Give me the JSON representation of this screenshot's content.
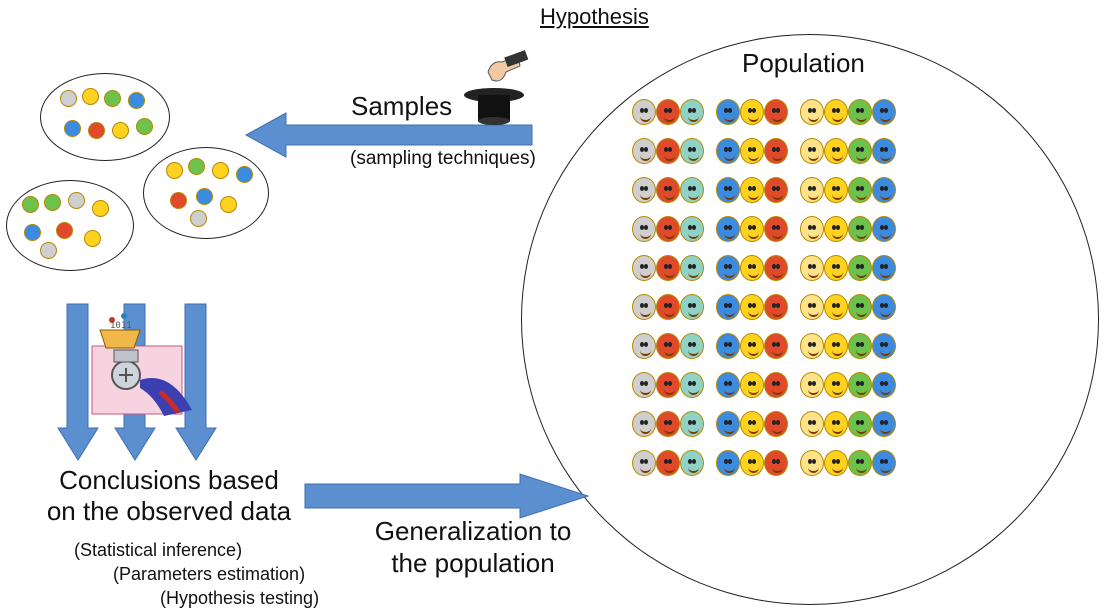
{
  "title": "Hypothesis",
  "population_label": "Population",
  "samples_label": "Samples",
  "sampling_note": "(sampling techniques)",
  "conclusions_line1": "Conclusions based",
  "conclusions_line2": "on the observed data",
  "generalization_line1": "Generalization to",
  "generalization_line2": "the population",
  "sub_items": [
    "(Statistical inference)",
    "(Parameters estimation)",
    "(Hypothesis testing)"
  ],
  "colors": {
    "arrow_fill": "#5b8fd0",
    "arrow_stroke": "#3f6fae",
    "outline": "#222222",
    "face_yellow": "#ffd21f",
    "face_green": "#6cc24a",
    "face_blue": "#3b8be0",
    "face_red": "#e04a2a",
    "face_grey": "#cfcfcf"
  },
  "icons": [
    "top-hat-icon",
    "hand-icon",
    "data-grinder-icon",
    "smiley-face-icon"
  ],
  "population_grid": {
    "rows": 10,
    "row_pattern": [
      "grey",
      "red",
      "teal",
      "blue",
      "yellow",
      "red",
      "chart",
      "yellow",
      "green",
      "blue"
    ]
  }
}
